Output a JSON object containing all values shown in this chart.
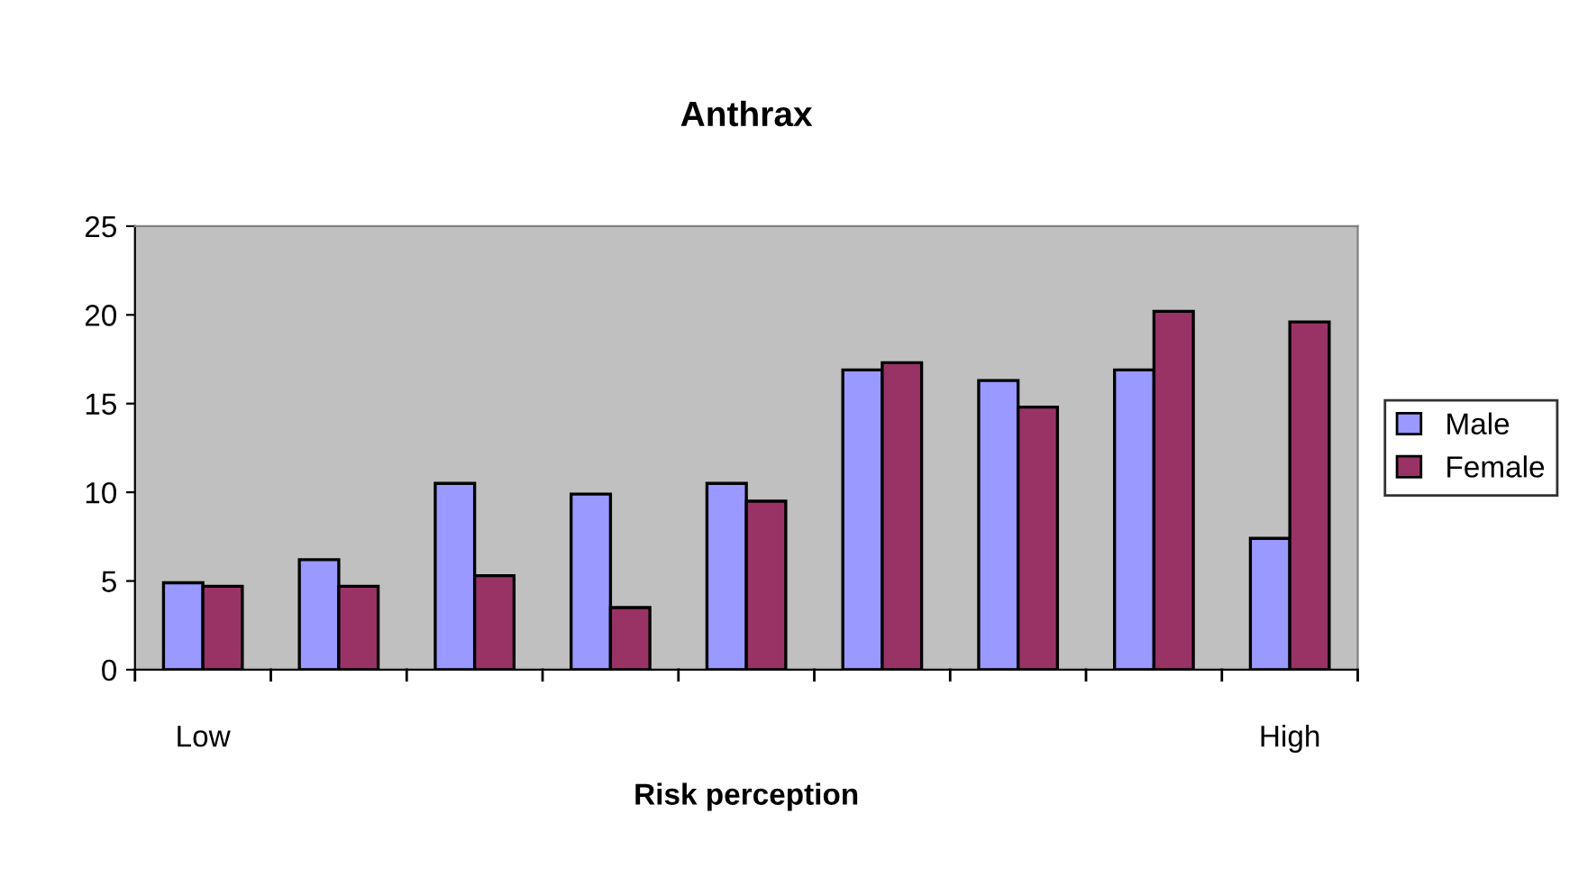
{
  "chart_data": {
    "type": "bar",
    "title": "Anthrax",
    "xlabel": "Risk perception",
    "categories": [
      "Low",
      null,
      null,
      null,
      null,
      null,
      null,
      null,
      "High"
    ],
    "series": [
      {
        "name": "Male",
        "color": "#9999ff",
        "values": [
          4.9,
          6.2,
          10.5,
          9.9,
          10.5,
          16.9,
          16.3,
          16.9,
          7.4
        ]
      },
      {
        "name": "Female",
        "color": "#993366",
        "values": [
          4.7,
          4.7,
          5.3,
          3.5,
          9.5,
          17.3,
          14.8,
          20.2,
          19.6
        ]
      }
    ],
    "ylim": [
      0,
      25
    ],
    "yticks": [
      0,
      5,
      10,
      15,
      20,
      25
    ],
    "grid": false,
    "legend": "right"
  }
}
